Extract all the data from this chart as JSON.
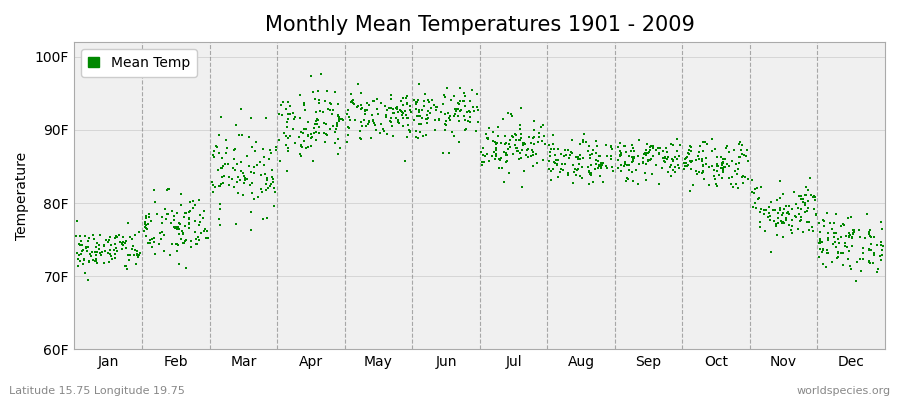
{
  "title": "Monthly Mean Temperatures 1901 - 2009",
  "ylabel": "Temperature",
  "ylim": [
    60,
    102
  ],
  "yticks": [
    60,
    70,
    80,
    90,
    100
  ],
  "ytick_labels": [
    "60F",
    "70F",
    "80F",
    "90F",
    "100F"
  ],
  "months": [
    "Jan",
    "Feb",
    "Mar",
    "Apr",
    "May",
    "Jun",
    "Jul",
    "Aug",
    "Sep",
    "Oct",
    "Nov",
    "Dec"
  ],
  "dot_color": "#008800",
  "bg_color": "#ffffff",
  "plot_bg": "#f0f0f0",
  "grid_color": "#888888",
  "title_fontsize": 15,
  "axis_fontsize": 10,
  "tick_fontsize": 10,
  "legend_label": "Mean Temp",
  "footer_left": "Latitude 15.75 Longitude 19.75",
  "footer_right": "worldspecies.org",
  "mean_temps": [
    73.5,
    76.5,
    84.5,
    91.0,
    92.0,
    92.0,
    88.0,
    85.5,
    86.0,
    85.5,
    79.0,
    74.5
  ],
  "temp_spread": [
    1.5,
    2.5,
    3.0,
    2.5,
    1.8,
    1.8,
    2.0,
    1.5,
    1.5,
    1.8,
    2.0,
    2.0
  ],
  "n_years": 109,
  "seed": 42
}
